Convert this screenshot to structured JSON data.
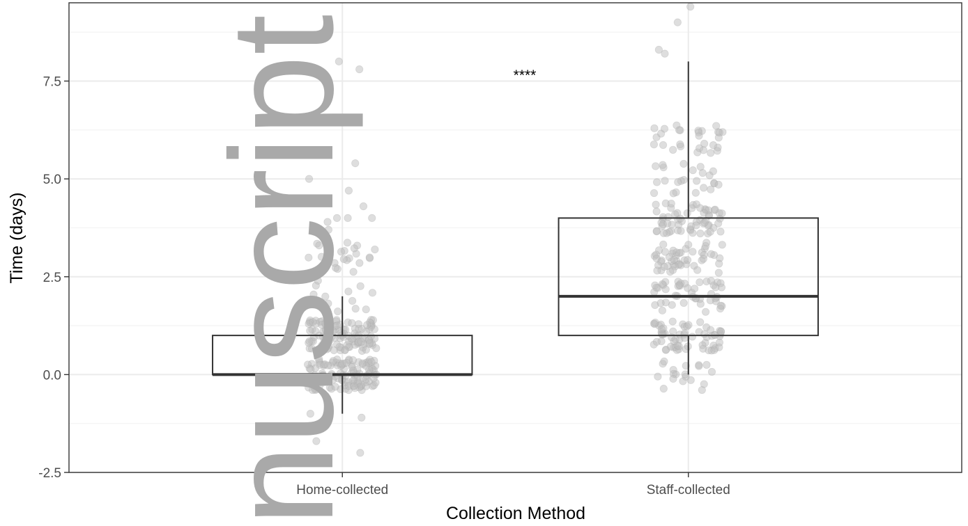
{
  "chart_data": {
    "type": "box",
    "xlabel": "Collection Method",
    "ylabel": "Time (days)",
    "categories": [
      "Home-collected",
      "Staff-collected"
    ],
    "ylim": [
      -2.5,
      9.5
    ],
    "yticks": [
      -2.5,
      0.0,
      2.5,
      5.0,
      7.5
    ],
    "ytick_labels": [
      "-2.5",
      "0.0",
      "2.5",
      "5.0",
      "7.5"
    ],
    "boxes": [
      {
        "category": "Home-collected",
        "lower_whisker": -1.0,
        "q1": 0.0,
        "median": 0.0,
        "q3": 1.0,
        "upper_whisker": 2.0
      },
      {
        "category": "Staff-collected",
        "lower_whisker": 0.0,
        "q1": 1.0,
        "median": 2.0,
        "q3": 4.0,
        "upper_whisker": 8.0
      }
    ],
    "jittered_points": [
      {
        "category": "Home-collected",
        "count": 300,
        "outliers": [
          8.0,
          7.8,
          5.4,
          5.0,
          4.7,
          4.3,
          4.0,
          4.0,
          4.0,
          3.9,
          3.7,
          3.3,
          -1.0,
          -1.1,
          -1.7,
          -2.0
        ]
      },
      {
        "category": "Staff-collected",
        "count": 300,
        "outliers": [
          9.4,
          9.0,
          8.3,
          8.2
        ]
      }
    ],
    "annotation": "****",
    "grid": true,
    "colors": {
      "points": "#bdbdbd",
      "box": "#333333",
      "grid": "#ebebeb"
    }
  },
  "watermark": "nuscript"
}
